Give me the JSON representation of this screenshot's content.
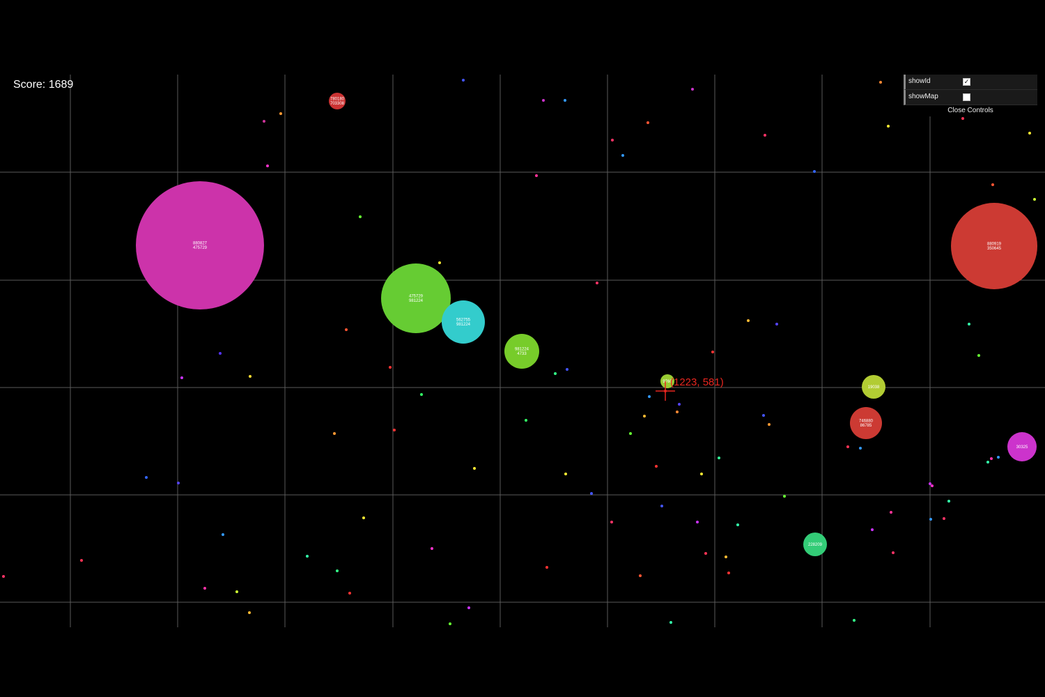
{
  "score": {
    "label": "Score: 1689"
  },
  "controls": {
    "rows": [
      {
        "label": "showId",
        "checked": true
      },
      {
        "label": "showMap",
        "checked": false
      }
    ],
    "close_label": "Close Controls"
  },
  "cursor": {
    "label": "(1223, 581)",
    "color": "#e8261f"
  },
  "grid": {
    "line_color": "#5a5a5a"
  },
  "blobs": [
    {
      "line1": "880827",
      "line2": "475729",
      "color": "#cc33aa"
    },
    {
      "line1": "880919",
      "line2": "350645",
      "color": "#cc3a33"
    },
    {
      "line1": "475729",
      "line2": "981224",
      "color": "#66cc33"
    },
    {
      "line1": "562755",
      "line2": "981224",
      "color": "#33cccc"
    },
    {
      "line1": "981224",
      "line2": "4733",
      "color": "#77cc2a"
    },
    {
      "line1": "780180",
      "line2": "703308",
      "color": "#cc3333"
    },
    {
      "line1": "746880",
      "line2": "86785",
      "color": "#cc3a33"
    },
    {
      "line1": "19038",
      "line2": "",
      "color": "#b2cc33"
    },
    {
      "line1": "30325",
      "line2": "",
      "color": "#cc33cc"
    },
    {
      "line1": "228209",
      "line2": "",
      "color": "#33cc77"
    },
    {
      "line1": "9760",
      "line2": "",
      "color": "#99cc33"
    }
  ]
}
